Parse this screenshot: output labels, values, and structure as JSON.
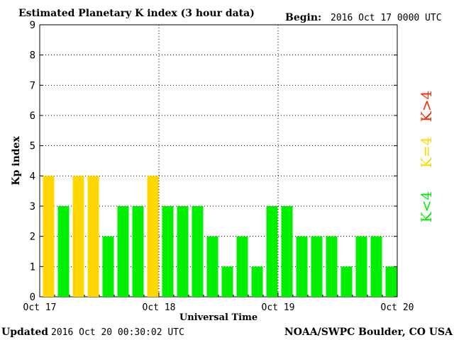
{
  "header": {
    "title": "Estimated Planetary K index (3 hour data)",
    "begin_label": "Begin:",
    "begin_value": "2016 Oct 17 0000 UTC"
  },
  "footer": {
    "updated_label": "Updated",
    "updated_value": "2016 Oct 20 00:30:02 UTC",
    "credit": "NOAA/SWPC Boulder, CO USA"
  },
  "legend": {
    "k_gt_4": "K>4",
    "k_eq_4": "K=4",
    "k_lt_4": "K<4"
  },
  "chart_data": {
    "type": "bar",
    "title": "Estimated Planetary K index (3 hour data)",
    "xlabel": "Universal Time",
    "ylabel": "Kp index",
    "ylim": [
      0,
      9
    ],
    "yticks": [
      "0",
      "1",
      "2",
      "3",
      "4",
      "5",
      "6",
      "7",
      "8",
      "9"
    ],
    "xticks": [
      "Oct 17",
      "Oct 18",
      "Oct 19",
      "Oct 20"
    ],
    "grid": true,
    "colors": {
      "lt4": "#00ee00",
      "eq4": "#ffd700",
      "gt4": "#ff2200"
    },
    "values": [
      4,
      3,
      4,
      4,
      2,
      3,
      3,
      4,
      3,
      3,
      3,
      2,
      1,
      2,
      1,
      3,
      3,
      2,
      2,
      2,
      1,
      2,
      2,
      1
    ]
  }
}
